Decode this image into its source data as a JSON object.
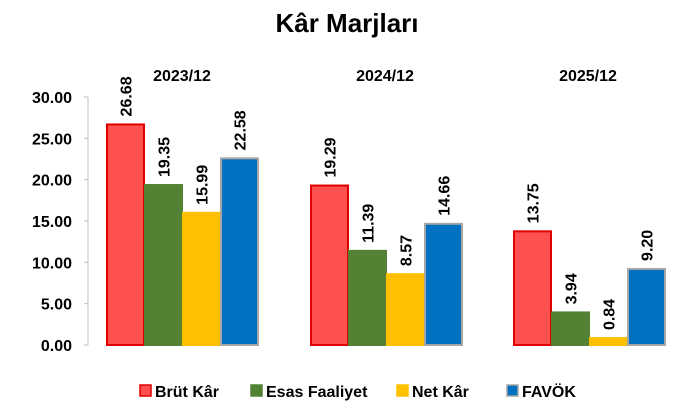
{
  "chart_data": {
    "type": "bar",
    "title": "Kâr Marjları",
    "categories": [
      "2023/12",
      "2024/12",
      "2025/12"
    ],
    "series": [
      {
        "name": "Brüt Kâr",
        "values": [
          26.68,
          19.29,
          13.75
        ],
        "color": "#ff5050",
        "stroke": "#e00000"
      },
      {
        "name": "Esas Faaliyet",
        "values": [
          19.35,
          11.39,
          3.94
        ],
        "color": "#548235",
        "stroke": "#548235"
      },
      {
        "name": "Net Kâr",
        "values": [
          15.99,
          8.57,
          0.84
        ],
        "color": "#ffc000",
        "stroke": "#ffc000"
      },
      {
        "name": "FAVÖK",
        "values": [
          22.58,
          14.66,
          9.2
        ],
        "color": "#0070c0",
        "stroke": "#a6a6a6"
      }
    ],
    "data_labels": [
      [
        "26.68",
        "19.29",
        "13.75"
      ],
      [
        "19.35",
        "11.39",
        "3.94"
      ],
      [
        "15.99",
        "8.57",
        "0.84"
      ],
      [
        "22.58",
        "14.66",
        "9.20"
      ]
    ],
    "y_ticks": [
      "0.00",
      "5.00",
      "10.00",
      "15.00",
      "20.00",
      "25.00",
      "30.00"
    ],
    "ylim": [
      0,
      30
    ],
    "grid": false,
    "legend_position": "bottom",
    "xlabel": "",
    "ylabel": ""
  }
}
